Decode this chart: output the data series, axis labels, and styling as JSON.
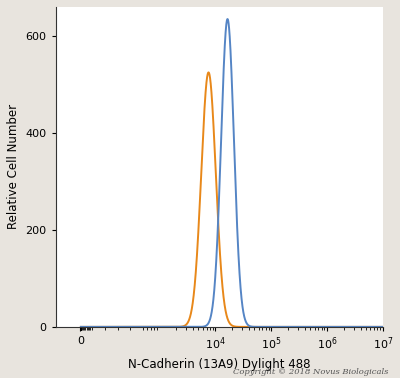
{
  "orange_peak_log": 3.88,
  "orange_peak_y": 525,
  "orange_sigma": 0.13,
  "blue_peak_log": 4.22,
  "blue_peak_y": 635,
  "blue_sigma": 0.115,
  "orange_color": "#E8881A",
  "blue_color": "#5585C5",
  "ylabel": "Relative Cell Number",
  "xlabel": "N-Cadherin (13A9) Dylight 488",
  "copyright_text": "Copyright © 2018 Novus Biologicals",
  "ylim": [
    0,
    660
  ],
  "yticks": [
    0,
    200,
    400,
    600
  ],
  "linewidth": 1.4,
  "plot_bg": "#ffffff",
  "fig_bg": "#e8e4de",
  "linthresh": 500,
  "xlim_left": -200,
  "xlim_right": 10000000.0
}
